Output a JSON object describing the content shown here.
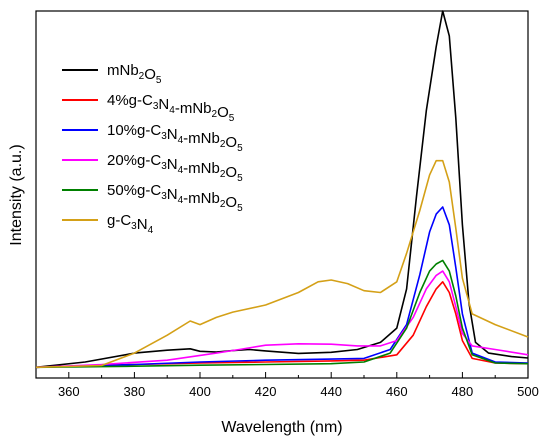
{
  "chart_data": {
    "type": "line",
    "xlabel": "Wavelength (nm)",
    "ylabel": "Intensity (a.u.)",
    "xlim": [
      350,
      500
    ],
    "ylim": [
      -30,
      1000
    ],
    "x_ticks": [
      360,
      380,
      400,
      420,
      440,
      460,
      480,
      500
    ],
    "y_ticks_labeled": false,
    "grid": false,
    "legend_position": "top-left",
    "series": [
      {
        "name": "mNb2O5",
        "legend": {
          "base": "mNb",
          "sub1": "2",
          "mid": "O",
          "sub2": "5"
        },
        "color": "#000000",
        "points": [
          [
            350,
            0
          ],
          [
            365,
            15
          ],
          [
            380,
            40
          ],
          [
            390,
            48
          ],
          [
            397,
            52
          ],
          [
            400,
            45
          ],
          [
            405,
            43
          ],
          [
            410,
            47
          ],
          [
            415,
            50
          ],
          [
            420,
            46
          ],
          [
            430,
            39
          ],
          [
            440,
            42
          ],
          [
            448,
            50
          ],
          [
            455,
            70
          ],
          [
            460,
            110
          ],
          [
            463,
            220
          ],
          [
            466,
            480
          ],
          [
            469,
            720
          ],
          [
            472,
            900
          ],
          [
            474,
            1000
          ],
          [
            476,
            930
          ],
          [
            478,
            700
          ],
          [
            480,
            400
          ],
          [
            482,
            180
          ],
          [
            484,
            70
          ],
          [
            488,
            40
          ],
          [
            495,
            30
          ],
          [
            500,
            26
          ]
        ]
      },
      {
        "name": "4%g-C3N4-mNb2O5",
        "legend": {
          "pre": "4%g-C",
          "s1": "3",
          "m1": "N",
          "s2": "4",
          "m2": "-mNb",
          "s3": "2",
          "m3": "O",
          "s4": "5"
        },
        "color": "#ff0000",
        "points": [
          [
            350,
            0
          ],
          [
            380,
            8
          ],
          [
            400,
            12
          ],
          [
            420,
            15
          ],
          [
            440,
            18
          ],
          [
            450,
            20
          ],
          [
            460,
            35
          ],
          [
            465,
            90
          ],
          [
            469,
            170
          ],
          [
            472,
            220
          ],
          [
            474,
            240
          ],
          [
            476,
            210
          ],
          [
            478,
            150
          ],
          [
            480,
            75
          ],
          [
            483,
            25
          ],
          [
            490,
            12
          ],
          [
            500,
            10
          ]
        ]
      },
      {
        "name": "10%g-C3N4-mNb2O5",
        "legend": {
          "pre": "10%g-C",
          "s1": "3",
          "m1": "N",
          "s2": "4",
          "m2": "-mNb",
          "s3": "2",
          "m3": "O",
          "s4": "5"
        },
        "color": "#0000ff",
        "points": [
          [
            350,
            0
          ],
          [
            380,
            8
          ],
          [
            400,
            15
          ],
          [
            420,
            20
          ],
          [
            440,
            23
          ],
          [
            450,
            25
          ],
          [
            458,
            50
          ],
          [
            463,
            120
          ],
          [
            467,
            260
          ],
          [
            470,
            380
          ],
          [
            472,
            430
          ],
          [
            474,
            450
          ],
          [
            476,
            400
          ],
          [
            478,
            280
          ],
          [
            480,
            150
          ],
          [
            483,
            40
          ],
          [
            490,
            15
          ],
          [
            500,
            12
          ]
        ]
      },
      {
        "name": "20%g-C3N4-mNb2O5",
        "legend": {
          "pre": "20%g-C",
          "s1": "3",
          "m1": "N",
          "s2": "4",
          "m2": "-mNb",
          "s3": "2",
          "m3": "O",
          "s4": "5"
        },
        "color": "#ff00ff",
        "points": [
          [
            350,
            0
          ],
          [
            370,
            8
          ],
          [
            390,
            20
          ],
          [
            405,
            40
          ],
          [
            412,
            50
          ],
          [
            420,
            62
          ],
          [
            430,
            66
          ],
          [
            440,
            65
          ],
          [
            448,
            60
          ],
          [
            455,
            60
          ],
          [
            460,
            75
          ],
          [
            465,
            140
          ],
          [
            469,
            220
          ],
          [
            472,
            258
          ],
          [
            474,
            270
          ],
          [
            476,
            240
          ],
          [
            478,
            170
          ],
          [
            480,
            95
          ],
          [
            483,
            60
          ],
          [
            490,
            50
          ],
          [
            500,
            35
          ]
        ]
      },
      {
        "name": "50%g-C3N4-mNb2O5",
        "legend": {
          "pre": "50%g-C",
          "s1": "3",
          "m1": "N",
          "s2": "4",
          "m2": "-mNb",
          "s3": "2",
          "m3": "O",
          "s4": "5"
        },
        "color": "#008000",
        "points": [
          [
            350,
            0
          ],
          [
            380,
            3
          ],
          [
            400,
            6
          ],
          [
            420,
            8
          ],
          [
            440,
            10
          ],
          [
            450,
            15
          ],
          [
            458,
            40
          ],
          [
            463,
            110
          ],
          [
            467,
            210
          ],
          [
            470,
            270
          ],
          [
            472,
            290
          ],
          [
            474,
            300
          ],
          [
            476,
            270
          ],
          [
            478,
            200
          ],
          [
            480,
            110
          ],
          [
            483,
            35
          ],
          [
            490,
            12
          ],
          [
            500,
            10
          ]
        ]
      },
      {
        "name": "g-C3N4",
        "legend": {
          "pre": "g-C",
          "s1": "3",
          "m1": "N",
          "s2": "4"
        },
        "color": "#d4a017",
        "points": [
          [
            350,
            0
          ],
          [
            370,
            5
          ],
          [
            380,
            40
          ],
          [
            390,
            90
          ],
          [
            397,
            130
          ],
          [
            400,
            120
          ],
          [
            405,
            140
          ],
          [
            410,
            155
          ],
          [
            420,
            175
          ],
          [
            430,
            210
          ],
          [
            436,
            240
          ],
          [
            440,
            245
          ],
          [
            445,
            235
          ],
          [
            450,
            215
          ],
          [
            455,
            210
          ],
          [
            460,
            240
          ],
          [
            463,
            320
          ],
          [
            467,
            440
          ],
          [
            470,
            540
          ],
          [
            472,
            580
          ],
          [
            474,
            580
          ],
          [
            476,
            520
          ],
          [
            478,
            390
          ],
          [
            480,
            250
          ],
          [
            483,
            150
          ],
          [
            490,
            120
          ],
          [
            500,
            85
          ]
        ]
      }
    ]
  }
}
